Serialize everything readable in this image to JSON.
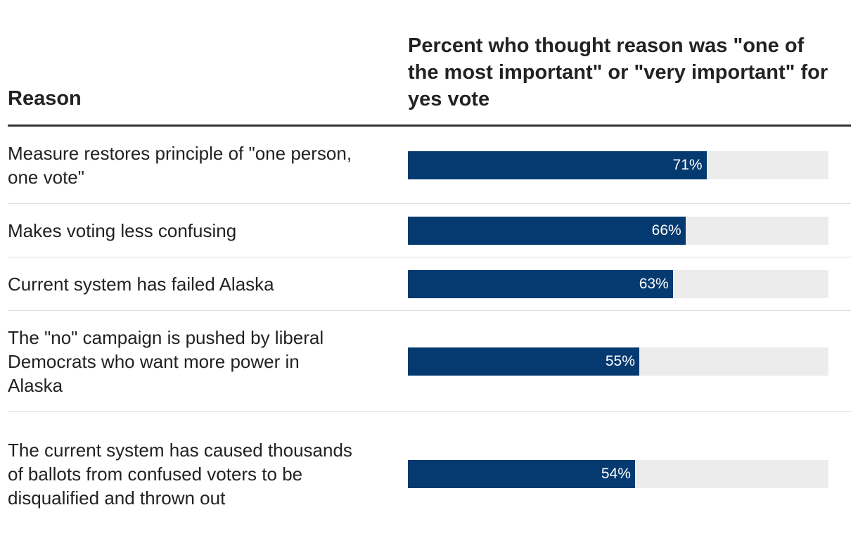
{
  "chart_data": {
    "type": "bar",
    "orientation": "horizontal",
    "title": "",
    "xlabel": "Percent who thought reason was \"one of the most important\" or \"very important\" for yes vote",
    "ylabel": "Reason",
    "xlim": [
      0,
      100
    ],
    "categories": [
      "Measure restores principle of \"one person, one vote\"",
      "Makes voting less confusing",
      "Current system has failed Alaska",
      "The \"no\" campaign is pushed by liberal Democrats who want more power in Alaska",
      "The current system has caused thousands of ballots from confused voters to be disqualified and thrown out"
    ],
    "values": [
      71,
      66,
      63,
      55,
      54
    ],
    "value_labels": [
      "71%",
      "66%",
      "63%",
      "55%",
      "54%"
    ]
  },
  "colors": {
    "bar": "#053a70",
    "track": "#ececec",
    "value_text": "#ffffff"
  }
}
